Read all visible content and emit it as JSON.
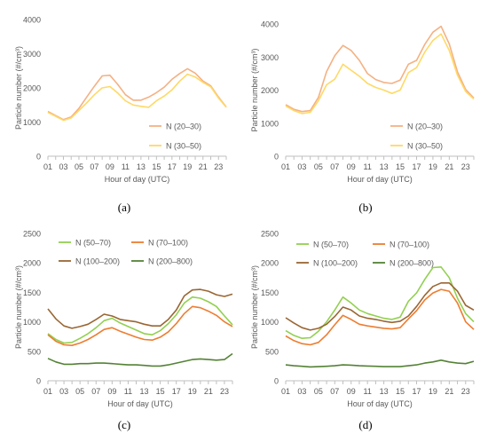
{
  "colors": {
    "axis": "#bfbfbf",
    "tick_text": "#595959",
    "n20_30": "#f4b183",
    "n30_50": "#ffd966",
    "n50_70": "#92d050",
    "n70_100": "#ed7d31",
    "n100_200": "#996633",
    "n200_800": "#548235"
  },
  "chart_data": [
    {
      "id": "a",
      "caption": "(a)",
      "type": "line",
      "xlabel": "Hour of day (UTC)",
      "ylabel": "Particle number (#/cm³)",
      "x": [
        1,
        2,
        3,
        4,
        5,
        6,
        7,
        8,
        9,
        10,
        11,
        12,
        13,
        14,
        15,
        16,
        17,
        18,
        19,
        20,
        21,
        22,
        23,
        24
      ],
      "xticks": [
        "01",
        "03",
        "05",
        "07",
        "09",
        "11",
        "13",
        "15",
        "17",
        "19",
        "21",
        "23"
      ],
      "ylim": [
        0,
        4000
      ],
      "yticks": [
        0,
        1000,
        2000,
        3000,
        4000
      ],
      "legend_position": "right",
      "series": [
        {
          "name": "N (20–30)",
          "color_key": "n20_30",
          "values": [
            1310,
            1190,
            1070,
            1150,
            1400,
            1730,
            2050,
            2350,
            2370,
            2100,
            1800,
            1640,
            1640,
            1730,
            1860,
            2020,
            2250,
            2420,
            2560,
            2430,
            2200,
            2060,
            1730,
            1440
          ]
        },
        {
          "name": "N (30–50)",
          "color_key": "n30_50",
          "values": [
            1280,
            1170,
            1050,
            1120,
            1340,
            1560,
            1800,
            2000,
            2040,
            1850,
            1620,
            1500,
            1460,
            1430,
            1620,
            1760,
            1940,
            2200,
            2400,
            2320,
            2160,
            2030,
            1700,
            1430
          ]
        }
      ]
    },
    {
      "id": "b",
      "caption": "(b)",
      "type": "line",
      "xlabel": "Hour of day (UTC)",
      "ylabel": "Particle number (#/cm³)",
      "x": [
        1,
        2,
        3,
        4,
        5,
        6,
        7,
        8,
        9,
        10,
        11,
        12,
        13,
        14,
        15,
        16,
        17,
        18,
        19,
        20,
        21,
        22,
        23,
        24
      ],
      "xticks": [
        "01",
        "03",
        "05",
        "07",
        "09",
        "11",
        "13",
        "15",
        "17",
        "19",
        "21",
        "23"
      ],
      "ylim": [
        0,
        4000
      ],
      "yticks": [
        0,
        1000,
        2000,
        3000,
        4000
      ],
      "legend_position": "right",
      "series": [
        {
          "name": "N (20–30)",
          "color_key": "n20_30",
          "values": [
            1560,
            1420,
            1350,
            1380,
            1780,
            2560,
            3040,
            3350,
            3200,
            2900,
            2500,
            2320,
            2230,
            2200,
            2300,
            2780,
            2900,
            3380,
            3750,
            3930,
            3400,
            2550,
            2020,
            1760
          ]
        },
        {
          "name": "N (30–50)",
          "color_key": "n30_50",
          "values": [
            1520,
            1380,
            1290,
            1330,
            1680,
            2160,
            2330,
            2780,
            2600,
            2420,
            2200,
            2080,
            2000,
            1900,
            2000,
            2530,
            2680,
            3150,
            3500,
            3700,
            3200,
            2450,
            1960,
            1730
          ]
        }
      ]
    },
    {
      "id": "c",
      "caption": "(c)",
      "type": "line",
      "xlabel": "Hour of day (UTC)",
      "ylabel": "Particle number (#/cm³)",
      "x": [
        1,
        2,
        3,
        4,
        5,
        6,
        7,
        8,
        9,
        10,
        11,
        12,
        13,
        14,
        15,
        16,
        17,
        18,
        19,
        20,
        21,
        22,
        23,
        24
      ],
      "xticks": [
        "01",
        "03",
        "05",
        "07",
        "09",
        "11",
        "13",
        "15",
        "17",
        "19",
        "21",
        "23"
      ],
      "ylim": [
        0,
        2500
      ],
      "yticks": [
        0,
        500,
        1000,
        1500,
        2000,
        2500
      ],
      "legend_position": "top",
      "series": [
        {
          "name": "N (50–70)",
          "color_key": "n50_70",
          "values": [
            800,
            700,
            640,
            650,
            720,
            800,
            900,
            1020,
            1060,
            980,
            920,
            860,
            800,
            780,
            850,
            970,
            1120,
            1320,
            1420,
            1400,
            1340,
            1260,
            1100,
            950
          ]
        },
        {
          "name": "N (70–100)",
          "color_key": "n70_100",
          "values": [
            780,
            670,
            610,
            600,
            640,
            700,
            780,
            870,
            900,
            840,
            790,
            740,
            700,
            690,
            740,
            830,
            970,
            1140,
            1260,
            1240,
            1180,
            1110,
            1000,
            920
          ]
        },
        {
          "name": "N (100–200)",
          "color_key": "n100_200",
          "values": [
            1220,
            1050,
            930,
            890,
            920,
            960,
            1040,
            1130,
            1100,
            1040,
            1020,
            1000,
            960,
            930,
            930,
            1040,
            1200,
            1440,
            1540,
            1550,
            1520,
            1460,
            1430,
            1470
          ]
        },
        {
          "name": "N (200–800)",
          "color_key": "n200_800",
          "values": [
            380,
            320,
            280,
            280,
            290,
            290,
            300,
            300,
            290,
            280,
            270,
            270,
            260,
            250,
            250,
            270,
            300,
            330,
            360,
            370,
            360,
            350,
            360,
            460
          ]
        }
      ]
    },
    {
      "id": "d",
      "caption": "(d)",
      "type": "line",
      "xlabel": "Hour of day (UTC)",
      "ylabel": "Particle number (#/cm³)",
      "x": [
        1,
        2,
        3,
        4,
        5,
        6,
        7,
        8,
        9,
        10,
        11,
        12,
        13,
        14,
        15,
        16,
        17,
        18,
        19,
        20,
        21,
        22,
        23,
        24
      ],
      "xticks": [
        "01",
        "03",
        "05",
        "07",
        "09",
        "11",
        "13",
        "15",
        "17",
        "19",
        "21",
        "23"
      ],
      "ylim": [
        0,
        2500
      ],
      "yticks": [
        0,
        500,
        1000,
        1500,
        2000,
        2500
      ],
      "legend_position": "top",
      "series": [
        {
          "name": "N (50–70)",
          "color_key": "n50_70",
          "values": [
            850,
            770,
            720,
            730,
            840,
            1000,
            1200,
            1420,
            1320,
            1200,
            1140,
            1100,
            1060,
            1040,
            1080,
            1350,
            1490,
            1720,
            1920,
            1930,
            1750,
            1400,
            1140,
            1000
          ]
        },
        {
          "name": "N (70–100)",
          "color_key": "n70_100",
          "values": [
            760,
            680,
            630,
            610,
            650,
            780,
            950,
            1110,
            1040,
            960,
            930,
            910,
            890,
            880,
            900,
            1050,
            1190,
            1370,
            1490,
            1550,
            1520,
            1320,
            1000,
            870
          ]
        },
        {
          "name": "N (100–200)",
          "color_key": "n100_200",
          "values": [
            1070,
            980,
            900,
            860,
            890,
            960,
            1090,
            1250,
            1200,
            1100,
            1060,
            1040,
            1010,
            990,
            1010,
            1100,
            1260,
            1450,
            1600,
            1660,
            1660,
            1520,
            1280,
            1200
          ]
        },
        {
          "name": "N (200–800)",
          "color_key": "n200_800",
          "values": [
            270,
            255,
            245,
            235,
            240,
            245,
            255,
            270,
            265,
            255,
            250,
            245,
            240,
            240,
            240,
            255,
            270,
            300,
            320,
            350,
            320,
            300,
            290,
            330
          ]
        }
      ]
    }
  ]
}
